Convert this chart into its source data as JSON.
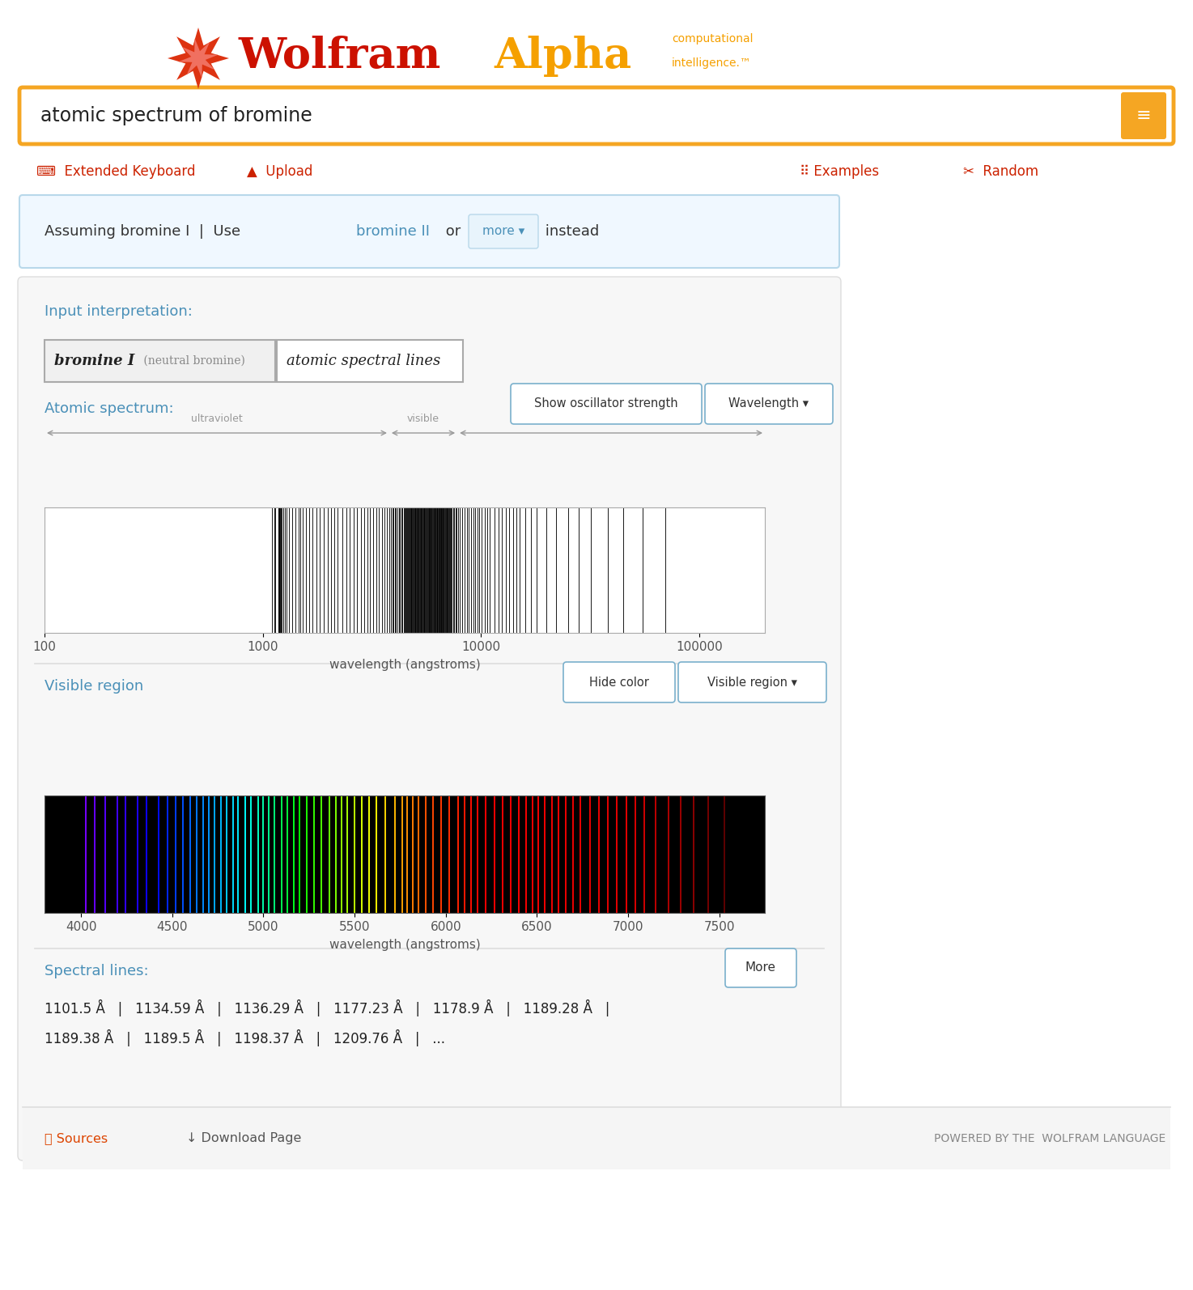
{
  "fig_width": 14.74,
  "fig_height": 15.94,
  "dpi": 100,
  "bg_color": "#ffffff",
  "panel_bg": "#f5f5f5",
  "panel_border": "#dddddd",
  "blue": "#4a90b8",
  "red": "#cc2200",
  "orange": "#f5a623",
  "dark_text": "#333333",
  "gray_text": "#666666",
  "light_gray": "#aaaaaa",
  "search_text": "atomic spectrum of bromine",
  "assuming_text": "Assuming bromine I  |  Use ",
  "bromine_ii": "bromine II",
  "or_text": " or ",
  "instead_text": " instead",
  "input_interp_label": "Input interpretation:",
  "box1_text1": "bromine I",
  "box1_text2": " (neutral bromine)",
  "box2_text": "atomic spectral lines",
  "atomic_spectrum_label": "Atomic spectrum:",
  "visible_region_label": "Visible region",
  "spectral_lines_label": "Spectral lines:",
  "sources_text": "Sources",
  "download_text": "Download Page",
  "powered_text": "POWERED BY THE ",
  "wolfram_lang_text": "WOLFRAM LANGUAGE",
  "show_osc_btn": "Show oscillator strength",
  "wavelength_btn": "Wavelength ▾",
  "hide_color_btn": "Hide color",
  "visible_region_btn": "Visible region ▾",
  "more_btn": "More",
  "more_dropdown": "more ▾",
  "spectral_line1": "1101.5 Å   |   1134.59 Å   |   1136.29 Å   |   1177.23 Å   |   1178.9 Å   |   1189.28 Å   |",
  "spectral_line2": "1189.38 Å   |   1189.5 Å   |   1198.37 Å   |   1209.76 Å   |   ...",
  "bromine_spectral_lines_log": [
    1101.5,
    1134.59,
    1136.29,
    1177.23,
    1178.9,
    1189.28,
    1189.38,
    1189.5,
    1198.37,
    1209.76,
    1220.0,
    1240.0,
    1260.0,
    1290.0,
    1320.0,
    1360.0,
    1410.0,
    1460.0,
    1490.0,
    1530.0,
    1580.0,
    1630.0,
    1690.0,
    1760.0,
    1830.0,
    1910.0,
    1990.0,
    2060.0,
    2130.0,
    2210.0,
    2310.0,
    2410.0,
    2510.0,
    2610.0,
    2710.0,
    2810.0,
    2910.0,
    3010.0,
    3110.0,
    3210.0,
    3310.0,
    3410.0,
    3510.0,
    3610.0,
    3710.0,
    3810.0,
    3870.0,
    3930.0,
    3980.0,
    4035.0,
    4082.0,
    4140.0,
    4206.0,
    4250.0,
    4316.0,
    4365.0,
    4431.0,
    4481.0,
    4526.0,
    4565.0,
    4607.0,
    4642.0,
    4678.0,
    4707.0,
    4738.0,
    4773.0,
    4807.0,
    4839.0,
    4868.0,
    4908.0,
    4938.0,
    4977.0,
    5007.0,
    5037.0,
    5067.0,
    5109.0,
    5139.0,
    5172.0,
    5207.0,
    5247.0,
    5287.0,
    5327.0,
    5370.0,
    5406.0,
    5437.0,
    5469.0,
    5505.0,
    5547.0,
    5587.0,
    5627.0,
    5677.0,
    5727.0,
    5767.0,
    5797.0,
    5827.0,
    5857.0,
    5897.0,
    5937.0,
    5982.0,
    6027.0,
    6075.0,
    6112.0,
    6147.0,
    6183.0,
    6227.0,
    6274.0,
    6318.0,
    6362.0,
    6407.0,
    6447.0,
    6482.0,
    6516.0,
    6551.0,
    6589.0,
    6627.0,
    6667.0,
    6707.0,
    6747.0,
    6797.0,
    6847.0,
    6897.0,
    6947.0,
    6997.0,
    7047.0,
    7097.0,
    7157.0,
    7227.0,
    7297.0,
    7367.0,
    7447.0,
    7537.0,
    7647.0,
    7757.0,
    7887.0,
    8017.0,
    8207.0,
    8407.0,
    8607.0,
    8807.0,
    9007.0,
    9207.0,
    9407.0,
    9607.0,
    9807.0,
    10107.0,
    10407.0,
    10707.0,
    11007.0,
    11507.0,
    12007.0,
    12507.0,
    13007.0,
    13507.0,
    14007.0,
    14507.0,
    15007.0,
    16007.0,
    17007.0,
    18007.0,
    20007.0,
    22007.0,
    25007.0,
    28007.0,
    32007.0,
    38007.0,
    45007.0,
    55007.0,
    70007.0
  ],
  "visible_lines_wl": [
    4028,
    4076,
    4133,
    4199,
    4244,
    4309,
    4358,
    4424,
    4474,
    4519,
    4558,
    4600,
    4635,
    4671,
    4700,
    4731,
    4766,
    4800,
    4832,
    4861,
    4901,
    4931,
    4970,
    5000,
    5030,
    5060,
    5102,
    5132,
    5165,
    5200,
    5240,
    5280,
    5320,
    5363,
    5399,
    5430,
    5462,
    5498,
    5540,
    5580,
    5620,
    5670,
    5720,
    5760,
    5790,
    5820,
    5850,
    5890,
    5930,
    5975,
    6020,
    6068,
    6105,
    6140,
    6176,
    6220,
    6267,
    6311,
    6355,
    6400,
    6440,
    6475,
    6509,
    6544,
    6582,
    6620,
    6660,
    6700,
    6740,
    6790,
    6840,
    6890,
    6940,
    6990,
    7040,
    7090,
    7150,
    7220,
    7290,
    7360,
    7440,
    7530
  ]
}
